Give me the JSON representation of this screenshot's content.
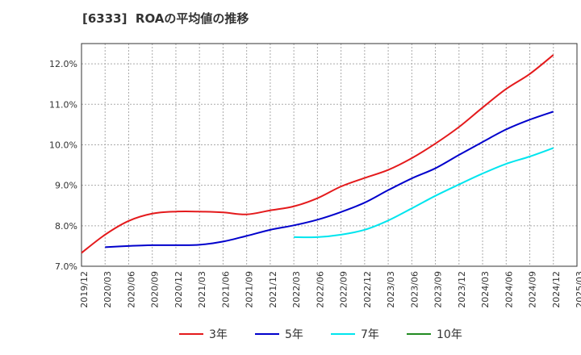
{
  "chart_data": {
    "type": "line",
    "title": "[6333]  ROAの平均値の推移",
    "xlabel": "",
    "ylabel": "",
    "x": [
      "2019/12",
      "2020/03",
      "2020/06",
      "2020/09",
      "2020/12",
      "2021/03",
      "2021/06",
      "2021/09",
      "2021/12",
      "2022/03",
      "2022/06",
      "2022/09",
      "2022/12",
      "2023/03",
      "2023/06",
      "2023/09",
      "2023/12",
      "2024/03",
      "2024/06",
      "2024/09",
      "2024/12",
      "2025/03"
    ],
    "ylim": [
      7.0,
      12.5
    ],
    "yticks": [
      7.0,
      8.0,
      9.0,
      10.0,
      11.0,
      12.0
    ],
    "ytick_labels": [
      "7.0%",
      "8.0%",
      "9.0%",
      "10.0%",
      "11.0%",
      "12.0%"
    ],
    "grid": true,
    "legend_position": "bottom",
    "series": [
      {
        "name": "3年",
        "color": "#e41a1c",
        "values": [
          7.33,
          7.78,
          8.12,
          8.3,
          8.35,
          8.35,
          8.33,
          8.28,
          8.38,
          8.48,
          8.68,
          8.97,
          9.18,
          9.38,
          9.67,
          10.03,
          10.44,
          10.92,
          11.38,
          11.75,
          12.22,
          null
        ]
      },
      {
        "name": "5年",
        "color": "#0000cc",
        "values": [
          null,
          7.47,
          7.5,
          7.52,
          7.52,
          7.53,
          7.61,
          7.75,
          7.9,
          8.01,
          8.15,
          8.34,
          8.57,
          8.88,
          9.17,
          9.42,
          9.75,
          10.07,
          10.38,
          10.62,
          10.82,
          null
        ]
      },
      {
        "name": "7年",
        "color": "#00e5ee",
        "values": [
          null,
          null,
          null,
          null,
          null,
          null,
          null,
          null,
          null,
          7.72,
          7.72,
          7.78,
          7.9,
          8.13,
          8.43,
          8.74,
          9.02,
          9.29,
          9.53,
          9.71,
          9.92,
          null
        ]
      },
      {
        "name": "10年",
        "color": "#228b22",
        "values": [
          null,
          null,
          null,
          null,
          null,
          null,
          null,
          null,
          null,
          null,
          null,
          null,
          null,
          null,
          null,
          null,
          null,
          null,
          null,
          null,
          null,
          null
        ]
      }
    ]
  }
}
